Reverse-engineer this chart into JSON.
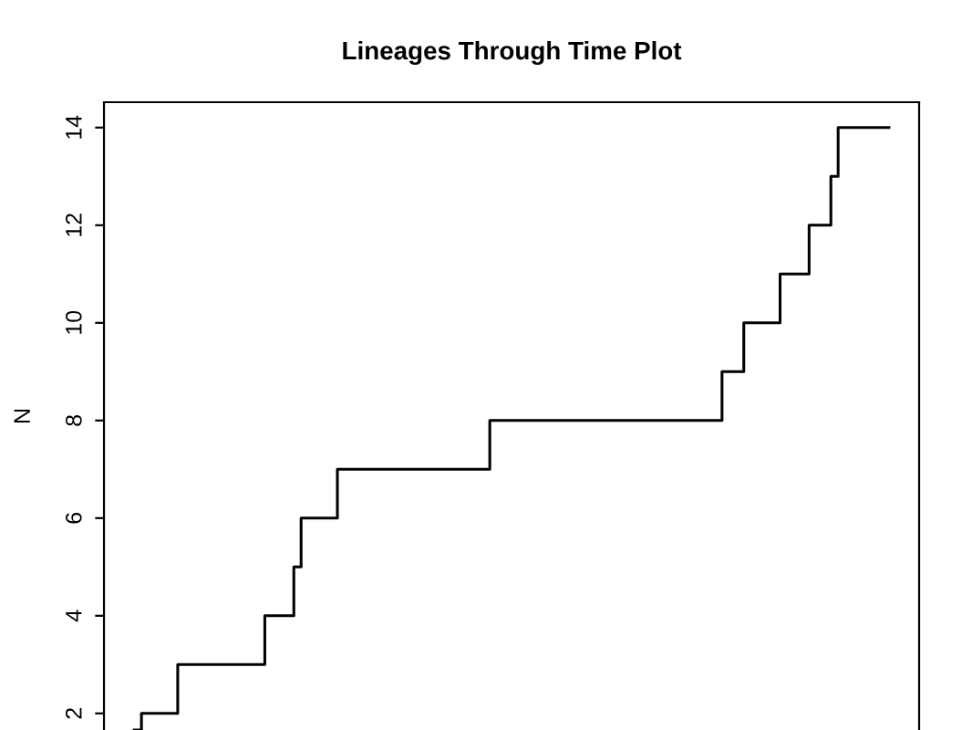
{
  "chart_data": {
    "type": "step",
    "title": "Lineages Through Time Plot",
    "ylabel": "N",
    "categories": [
      null,
      null,
      null,
      null,
      null,
      null,
      null,
      null,
      null,
      null,
      null,
      null,
      null,
      null,
      null,
      null,
      null,
      null,
      null,
      null,
      null,
      null,
      null,
      null,
      null,
      null,
      null,
      null,
      null,
      null,
      null,
      null,
      null,
      null,
      null,
      null,
      null,
      null,
      null,
      null,
      null,
      null,
      null,
      null,
      null,
      null,
      null,
      null,
      null,
      null,
      null,
      null,
      null,
      null,
      null,
      null,
      null,
      null,
      null,
      null,
      null,
      null,
      null,
      null,
      null,
      null,
      null,
      null,
      null,
      null,
      null,
      null,
      null,
      null,
      null,
      null,
      null,
      null,
      null,
      null,
      null,
      null,
      null,
      null,
      null,
      null,
      null,
      null,
      null,
      null,
      null,
      null,
      null,
      null,
      null,
      null,
      null,
      null,
      null,
      null,
      null,
      null,
      null,
      null,
      null
    ],
    "series": [
      {
        "color": "#000000",
        "values": [
          1.66,
          2,
          2,
          2,
          2,
          2,
          3,
          3,
          3,
          3,
          3,
          3,
          3,
          3,
          3,
          3,
          3,
          3,
          4,
          4,
          4,
          4,
          5,
          6,
          6,
          6,
          6,
          6,
          7,
          7,
          7,
          7,
          7,
          7,
          7,
          7,
          7,
          7,
          7,
          7,
          7,
          7,
          7,
          7,
          7,
          7,
          7,
          7,
          7,
          8,
          8,
          8,
          8,
          8,
          8,
          8,
          8,
          8,
          8,
          8,
          8,
          8,
          8,
          8,
          8,
          8,
          8,
          8,
          8,
          8,
          8,
          8,
          8,
          8,
          8,
          8,
          8,
          8,
          8,
          8,
          8,
          9,
          9,
          9,
          10,
          10,
          10,
          10,
          10,
          11,
          11,
          11,
          11,
          12,
          12,
          12,
          13,
          14,
          14,
          14,
          14,
          14,
          14,
          14,
          14
        ]
      }
    ],
    "ylim": [
      1.66,
      14.52
    ],
    "yticks": [
      2,
      4,
      6,
      8,
      10,
      12,
      14
    ],
    "tick_labels": "y",
    "grid": false,
    "legend": false
  }
}
